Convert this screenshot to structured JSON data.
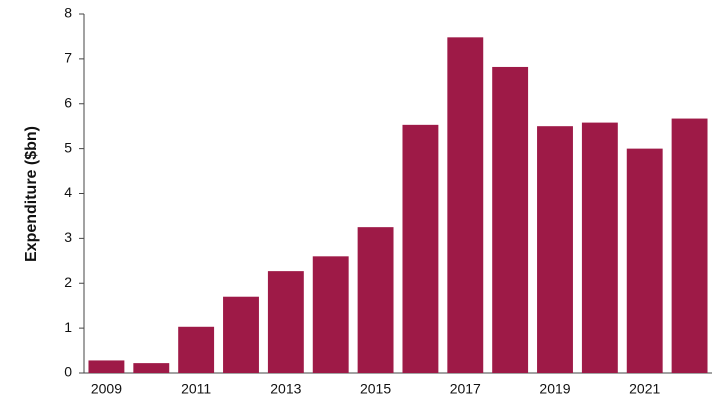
{
  "chart_data": {
    "type": "bar",
    "y_label": "Expenditure ($bn)",
    "categories": [
      "2009",
      null,
      "2011",
      null,
      "2013",
      null,
      "2015",
      null,
      "2017",
      null,
      "2019",
      null,
      "2021",
      null
    ],
    "values": [
      0.28,
      0.22,
      1.03,
      1.7,
      2.27,
      2.6,
      3.25,
      5.53,
      7.48,
      6.82,
      5.5,
      5.58,
      5.0,
      5.67
    ],
    "color": "#9e1a47",
    "ylim": [
      0,
      8
    ],
    "yticks": [
      0,
      1,
      2,
      3,
      4,
      5,
      6,
      7,
      8
    ],
    "grid": false
  }
}
